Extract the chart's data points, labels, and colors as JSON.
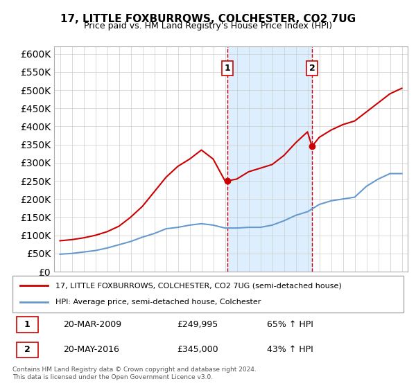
{
  "title": "17, LITTLE FOXBURROWS, COLCHESTER, CO2 7UG",
  "subtitle": "Price paid vs. HM Land Registry's House Price Index (HPI)",
  "legend_line1": "17, LITTLE FOXBURROWS, COLCHESTER, CO2 7UG (semi-detached house)",
  "legend_line2": "HPI: Average price, semi-detached house, Colchester",
  "footer": "Contains HM Land Registry data © Crown copyright and database right 2024.\nThis data is licensed under the Open Government Licence v3.0.",
  "sale1": {
    "label": "1",
    "date": "20-MAR-2009",
    "price": "£249,995",
    "hpi": "65% ↑ HPI",
    "year": 2009.22
  },
  "sale2": {
    "label": "2",
    "date": "20-MAY-2016",
    "price": "£345,000",
    "hpi": "43% ↑ HPI",
    "year": 2016.38
  },
  "property_color": "#cc0000",
  "hpi_color": "#6699cc",
  "vline_color": "#cc0000",
  "shade_color": "#ddeeff",
  "ylim": [
    0,
    620000
  ],
  "yticks": [
    0,
    50000,
    100000,
    150000,
    200000,
    250000,
    300000,
    350000,
    400000,
    450000,
    500000,
    550000,
    600000
  ],
  "hpi_years": [
    1995,
    1996,
    1997,
    1998,
    1999,
    2000,
    2001,
    2002,
    2003,
    2004,
    2005,
    2006,
    2007,
    2008,
    2009,
    2010,
    2011,
    2012,
    2013,
    2014,
    2015,
    2016,
    2017,
    2018,
    2019,
    2020,
    2021,
    2022,
    2023,
    2024
  ],
  "hpi_values": [
    48000,
    50000,
    54000,
    58000,
    65000,
    74000,
    83000,
    95000,
    105000,
    118000,
    122000,
    128000,
    132000,
    128000,
    120000,
    120000,
    122000,
    122000,
    128000,
    140000,
    155000,
    165000,
    185000,
    195000,
    200000,
    205000,
    235000,
    255000,
    270000,
    270000
  ],
  "prop_years": [
    1995,
    1996,
    1997,
    1998,
    1999,
    2000,
    2001,
    2002,
    2003,
    2004,
    2005,
    2006,
    2007,
    2008,
    2009,
    2009.22,
    2010,
    2011,
    2012,
    2013,
    2014,
    2015,
    2016,
    2016.38,
    2017,
    2018,
    2019,
    2020,
    2021,
    2022,
    2023,
    2024
  ],
  "prop_values": [
    85000,
    88000,
    93000,
    100000,
    110000,
    125000,
    150000,
    180000,
    220000,
    260000,
    290000,
    310000,
    335000,
    310000,
    250000,
    249995,
    255000,
    275000,
    285000,
    295000,
    320000,
    355000,
    385000,
    345000,
    370000,
    390000,
    405000,
    415000,
    440000,
    465000,
    490000,
    505000
  ]
}
